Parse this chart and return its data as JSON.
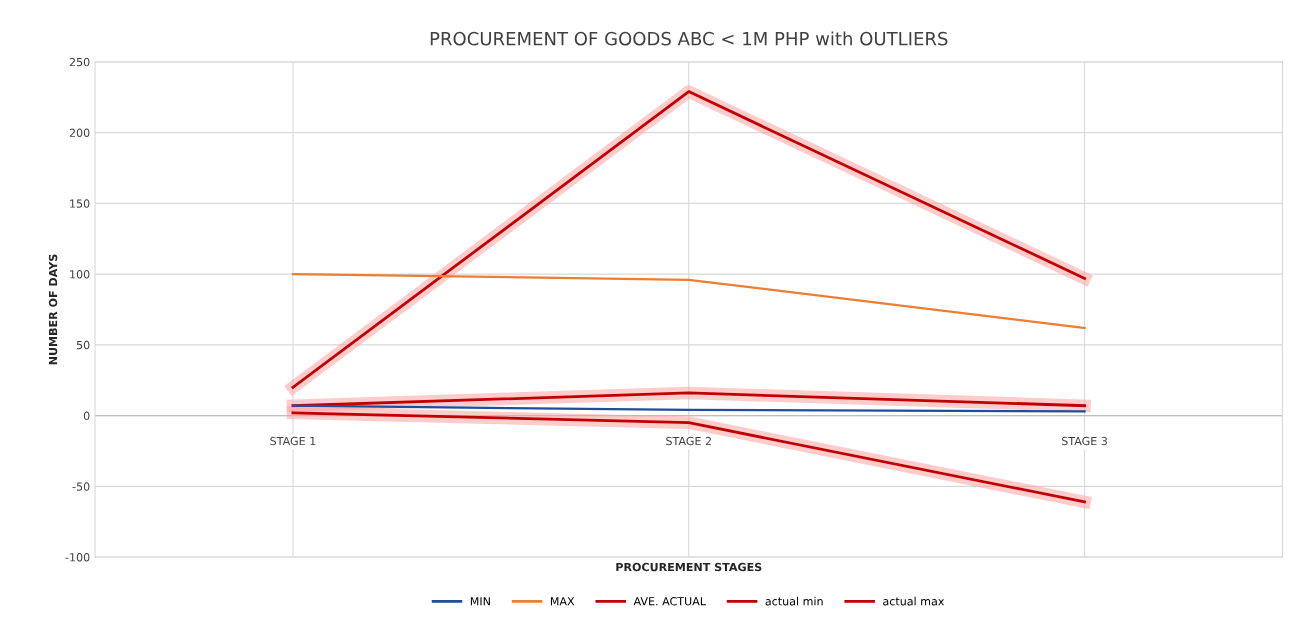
{
  "chart_data": {
    "type": "line",
    "title": "PROCUREMENT OF GOODS ABC < 1M PHP with OUTLIERS",
    "xlabel": "PROCUREMENT STAGES",
    "ylabel": "NUMBER OF DAYS",
    "categories": [
      "STAGE 1",
      "STAGE 2",
      "STAGE 3"
    ],
    "series": [
      {
        "name": "MIN",
        "color": "#1f4e9c",
        "values": [
          7,
          4,
          3
        ]
      },
      {
        "name": "MAX",
        "color": "#ed7d31",
        "values": [
          100,
          96,
          62
        ]
      },
      {
        "name": "AVE. ACTUAL",
        "color": "#c00000",
        "values": [
          7,
          16,
          7
        ]
      },
      {
        "name": "actual min",
        "color": "#c00000",
        "values": [
          2,
          -5,
          -61
        ]
      },
      {
        "name": "actual max",
        "color": "#c00000",
        "values": [
          20,
          229,
          97
        ]
      }
    ],
    "ylim": [
      -100,
      250
    ],
    "yticks": [
      -100,
      -50,
      0,
      50,
      100,
      150,
      200,
      250
    ],
    "grid": true,
    "legend": "bottom",
    "marker": "none",
    "line_style": "solid"
  }
}
